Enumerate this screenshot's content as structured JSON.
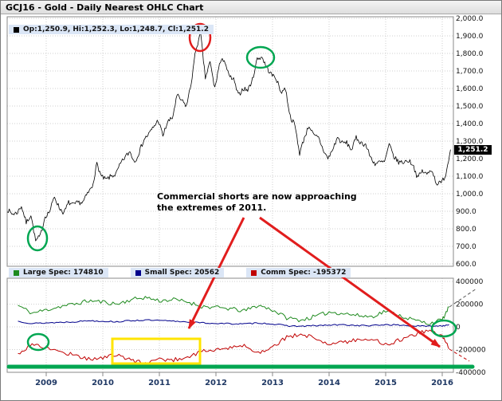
{
  "title": "GCJ16 - Gold - Daily Nearest OHLC Chart",
  "price_panel": {
    "legend": "Op:1,250.9, Hi:1,252.3, Lo:1,248.7, Cl:1,251.2",
    "last_price_label": "1,251.2"
  },
  "cot_panel": {
    "legend": [
      {
        "label": "Large Spec: 174810",
        "color": "#1e8a1e"
      },
      {
        "label": "Small Spec: 20562",
        "color": "#00008b"
      },
      {
        "label": "Comm Spec: -195372",
        "color": "#c00000"
      }
    ]
  },
  "annotation": {
    "text": "Commercial shorts are now approaching the extremes of 2011."
  },
  "highlights": [
    {
      "shape": "ellipse",
      "color": "red",
      "target": "2011 price peak ~1920"
    },
    {
      "shape": "ellipse",
      "color": "green",
      "target": "late 2012 price peak ~1800"
    },
    {
      "shape": "ellipse",
      "color": "green",
      "target": "2008 price low ~700"
    },
    {
      "shape": "ellipse",
      "color": "green",
      "target": "2009 commercial shorts extreme"
    },
    {
      "shape": "ellipse",
      "color": "green",
      "target": "2016 spec and commercial lines at right edge"
    },
    {
      "shape": "rect",
      "color": "yellow",
      "target": "2010-2011 commercial shorts extreme zone"
    },
    {
      "shape": "line",
      "color": "green",
      "target": "horizontal extreme-level bar across lower panel"
    },
    {
      "shape": "arrow",
      "color": "red",
      "target": "from note down-left to 2011 extreme zone"
    },
    {
      "shape": "arrow",
      "color": "red",
      "target": "from note down-right to 2016 commercial shorts"
    }
  ],
  "colors": {
    "ohlc": "#000000",
    "large_spec": "#1e8a1e",
    "small_spec": "#00008b",
    "comm_spec": "#c00000",
    "annotation_red": "#e11d1d",
    "annotation_green": "#00a651",
    "highlight_yellow": "#ffe400",
    "grid": "#cfcfcf",
    "panel_border": "#8a8a8a",
    "year_label": "#1f3864"
  },
  "chart_data": [
    {
      "type": "line",
      "name": "price",
      "title": "GCJ16 - Gold - Daily Nearest OHLC Chart",
      "x_start": 2008.3125,
      "x_step": 0.0833333,
      "values": [
        910,
        885,
        890,
        930,
        835,
        880,
        730,
        760,
        870,
        900,
        985,
        920,
        890,
        950,
        935,
        950,
        950,
        1000,
        1040,
        1170,
        1095,
        1080,
        1100,
        1110,
        1170,
        1210,
        1240,
        1180,
        1240,
        1310,
        1340,
        1380,
        1420,
        1330,
        1410,
        1430,
        1560,
        1530,
        1500,
        1630,
        1825,
        1910,
        1660,
        1750,
        1600,
        1740,
        1770,
        1670,
        1650,
        1560,
        1600,
        1590,
        1650,
        1770,
        1780,
        1720,
        1680,
        1660,
        1580,
        1600,
        1440,
        1390,
        1230,
        1320,
        1390,
        1330,
        1320,
        1250,
        1200,
        1250,
        1320,
        1290,
        1290,
        1250,
        1320,
        1290,
        1280,
        1210,
        1170,
        1180,
        1180,
        1280,
        1210,
        1180,
        1180,
        1190,
        1170,
        1090,
        1130,
        1110,
        1140,
        1060,
        1060,
        1110,
        1251.2
      ],
      "ylim": [
        600,
        2000
      ],
      "yticks": [
        "2,000.0",
        "1,900.0",
        "1,800.0",
        "1,700.0",
        "1,600.0",
        "1,500.0",
        "1,400.0",
        "1,300.0",
        "1,200.0",
        "1,100.0",
        "1,000.0",
        "900.0",
        "800.0",
        "700.0",
        "600.0"
      ],
      "xticks": [
        "2009",
        "2010",
        "2011",
        "2012",
        "2013",
        "2014",
        "2015",
        "2016"
      ],
      "grid": true,
      "legend_position": "top-left"
    },
    {
      "type": "line",
      "name": "commitment-of-traders",
      "x": [
        2008.5,
        2008.75,
        2009,
        2009.25,
        2009.5,
        2009.75,
        2010,
        2010.25,
        2010.5,
        2010.75,
        2011,
        2011.25,
        2011.5,
        2011.75,
        2012,
        2012.25,
        2012.5,
        2012.75,
        2013,
        2013.25,
        2013.5,
        2013.75,
        2014,
        2014.25,
        2014.5,
        2014.75,
        2015,
        2015.25,
        2015.5,
        2015.75,
        2016,
        2016.12
      ],
      "series": [
        {
          "name": "Large Spec",
          "last": 174810,
          "values": [
            190000,
            120000,
            150000,
            180000,
            200000,
            230000,
            220000,
            200000,
            240000,
            260000,
            230000,
            240000,
            220000,
            180000,
            170000,
            160000,
            140000,
            190000,
            150000,
            80000,
            60000,
            90000,
            130000,
            120000,
            100000,
            90000,
            140000,
            100000,
            60000,
            30000,
            60000,
            174810
          ]
        },
        {
          "name": "Small Spec",
          "last": 20562,
          "values": [
            50000,
            30000,
            35000,
            40000,
            45000,
            55000,
            50000,
            45000,
            55000,
            60000,
            55000,
            50000,
            45000,
            35000,
            30000,
            28000,
            25000,
            35000,
            25000,
            10000,
            5000,
            10000,
            15000,
            18000,
            12000,
            10000,
            20000,
            15000,
            8000,
            5000,
            10000,
            20562
          ]
        },
        {
          "name": "Comm Spec",
          "last": -195372,
          "values": [
            -240000,
            -150000,
            -185000,
            -220000,
            -245000,
            -285000,
            -270000,
            -245000,
            -295000,
            -320000,
            -285000,
            -290000,
            -265000,
            -215000,
            -200000,
            -188000,
            -165000,
            -225000,
            -175000,
            -90000,
            -65000,
            -100000,
            -145000,
            -138000,
            -112000,
            -100000,
            -160000,
            -115000,
            -68000,
            -35000,
            -70000,
            -195372
          ]
        }
      ],
      "ylim": [
        -400000,
        400000
      ],
      "yticks": [
        "400000",
        "200000",
        "0",
        "-200000",
        "-400000"
      ],
      "grid": true,
      "legend_position": "top-left"
    }
  ]
}
